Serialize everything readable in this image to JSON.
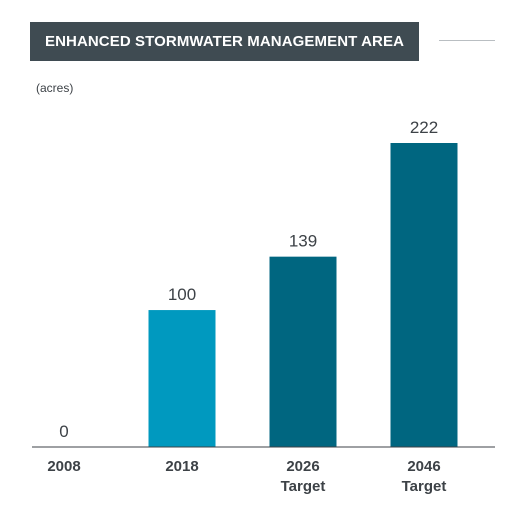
{
  "chart_data": {
    "type": "bar",
    "title": "ENHANCED STORMWATER MANAGEMENT AREA",
    "ylabel": "(acres)",
    "ylim": [
      0,
      222
    ],
    "grid": false,
    "categories": [
      {
        "line1": "2008",
        "line2": ""
      },
      {
        "line1": "2018",
        "line2": ""
      },
      {
        "line1": "2026",
        "line2": "Target"
      },
      {
        "line1": "2046",
        "line2": "Target"
      }
    ],
    "values": [
      0,
      100,
      139,
      222
    ],
    "value_labels": [
      "0",
      "100",
      "139",
      "222"
    ],
    "bar_colors": [
      "#0099bf",
      "#0099bf",
      "#006680",
      "#006680"
    ]
  }
}
